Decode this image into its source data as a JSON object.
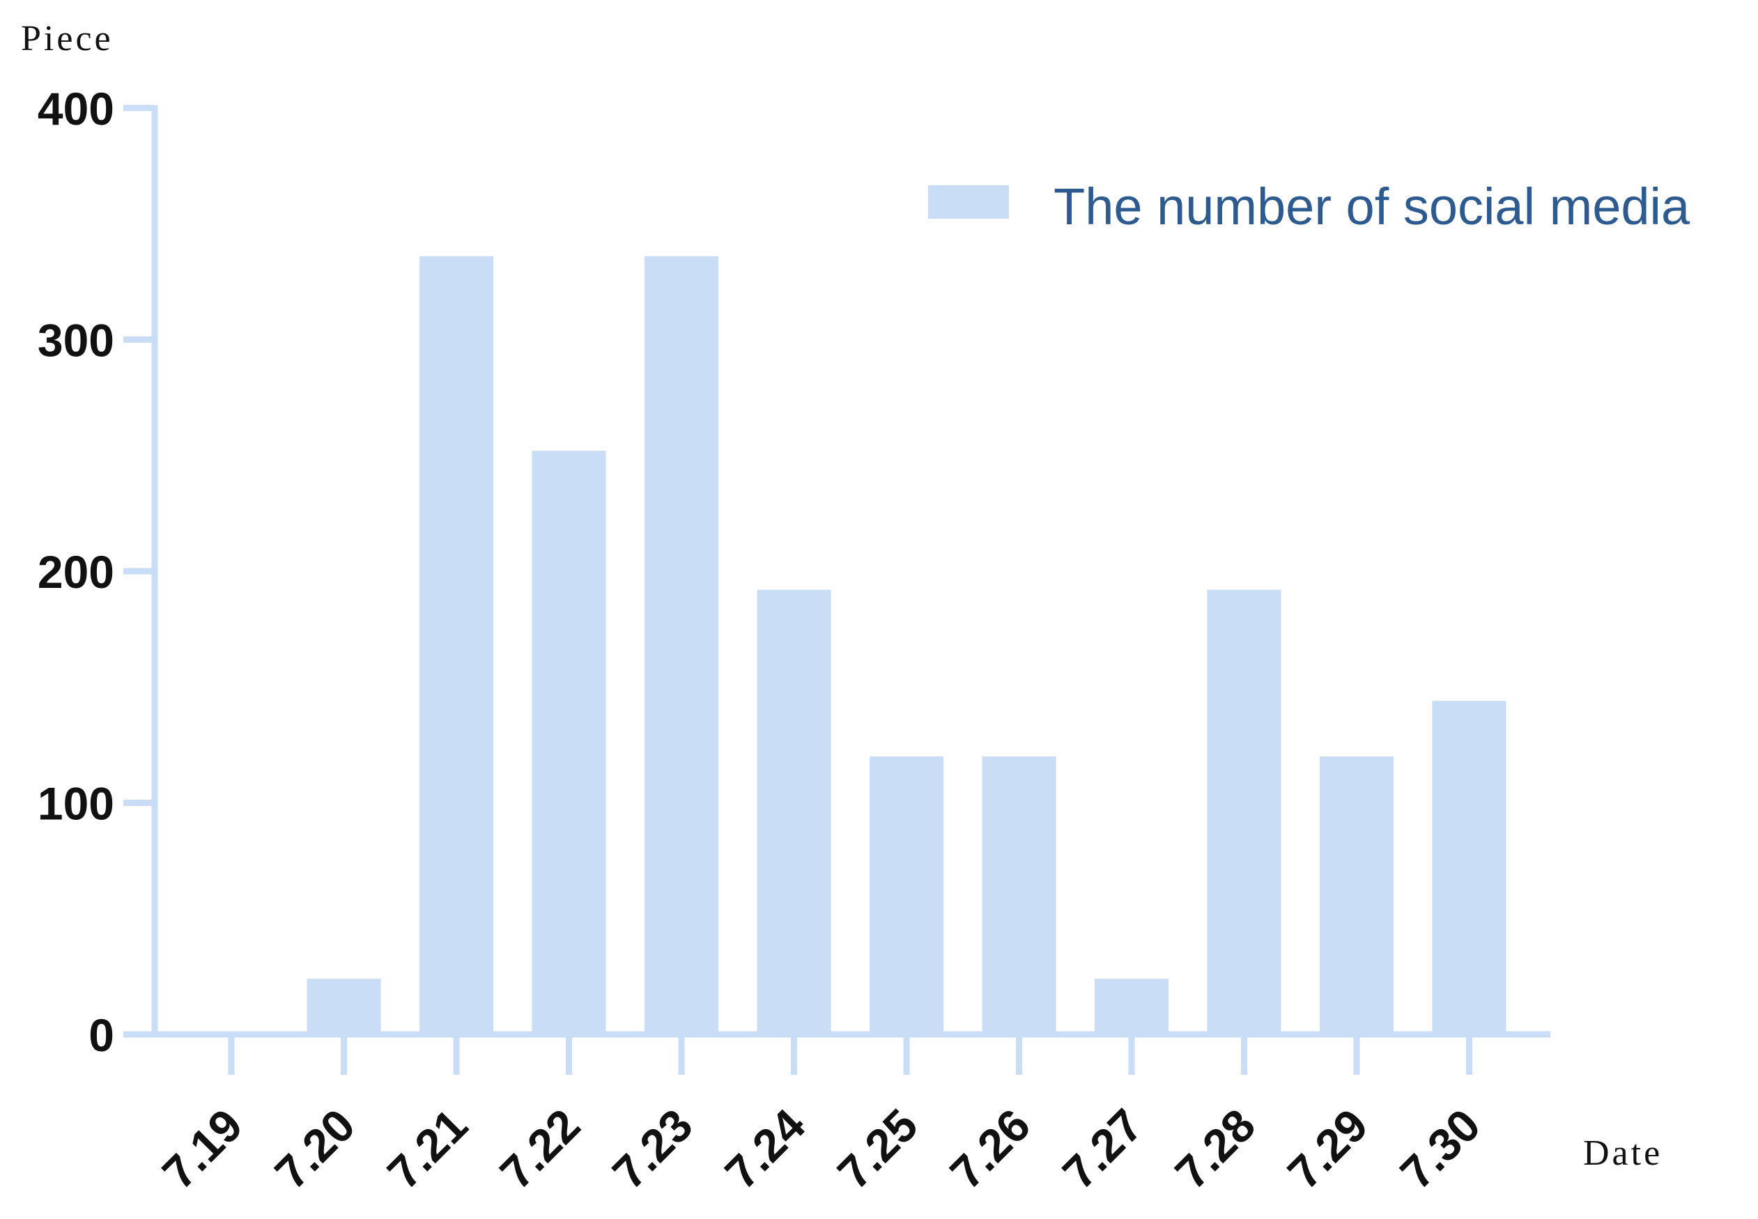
{
  "chart_data": {
    "type": "bar",
    "ylabel": "Piece",
    "xlabel": "Date",
    "categories": [
      "7.19",
      "7.20",
      "7.21",
      "7.22",
      "7.23",
      "7.24",
      "7.25",
      "7.26",
      "7.27",
      "7.28",
      "7.29",
      "7.30"
    ],
    "series": [
      {
        "name": "The number of social media",
        "values": [
          0,
          24,
          336,
          252,
          336,
          192,
          120,
          120,
          24,
          192,
          120,
          144
        ]
      }
    ],
    "ylim": [
      0,
      400
    ],
    "yticks": [
      0,
      100,
      200,
      300,
      400
    ],
    "grid": false,
    "legend": "top-right",
    "colors": {
      "bar": "#c9def6",
      "axis": "#c9def6",
      "legend_text": "#2e5b8f"
    }
  }
}
